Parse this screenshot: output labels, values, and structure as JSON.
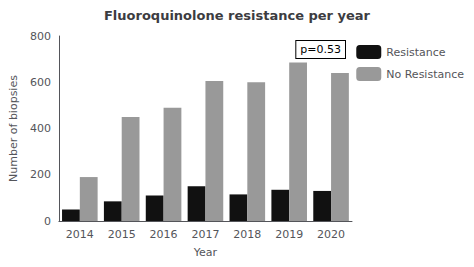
{
  "chart_data": {
    "type": "bar",
    "title": "Fluoroquinolone resistance per year",
    "x_label": "Year",
    "y_label": "Number of biopsies",
    "categories": [
      "2014",
      "2015",
      "2016",
      "2017",
      "2018",
      "2019",
      "2020"
    ],
    "series": [
      {
        "name": "Resistance",
        "color": "#111111",
        "values": [
          50,
          85,
          110,
          150,
          115,
          135,
          130
        ]
      },
      {
        "name": "No Resistance",
        "color": "#999999",
        "values": [
          190,
          450,
          490,
          605,
          600,
          685,
          640
        ]
      }
    ],
    "ylim": [
      0,
      800
    ],
    "yticks": [
      0,
      200,
      400,
      600,
      800
    ],
    "annotation": "p=0.53",
    "legend": "right",
    "grid": false
  }
}
